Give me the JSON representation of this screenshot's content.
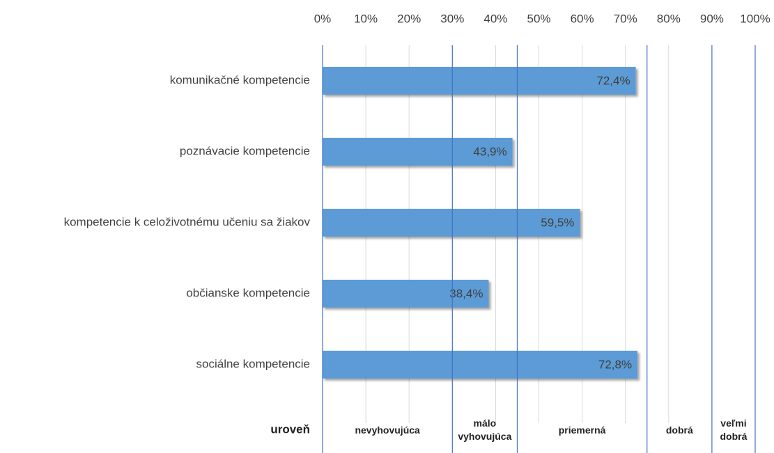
{
  "chart_data": {
    "type": "hbar",
    "categories": [
      "komunikačné kompetencie",
      "poznávacie kompetencie",
      "kompetencie k celoživotnému učeniu sa žiakov",
      "občianske kompetencie",
      "sociálne kompetencie"
    ],
    "values": [
      72.4,
      43.9,
      59.5,
      38.4,
      72.8
    ],
    "value_labels": [
      "72,4%",
      "43,9%",
      "59,5%",
      "38,4%",
      "72,8%"
    ],
    "color": "#5b9bd5",
    "xlim": [
      0,
      100
    ],
    "xticks": [
      {
        "value": 0,
        "label": "0%"
      },
      {
        "value": 10,
        "label": "10%"
      },
      {
        "value": 20,
        "label": "20%"
      },
      {
        "value": 30,
        "label": "30%"
      },
      {
        "value": 40,
        "label": "40%"
      },
      {
        "value": 50,
        "label": "50%"
      },
      {
        "value": 60,
        "label": "60%"
      },
      {
        "value": 70,
        "label": "70%"
      },
      {
        "value": 80,
        "label": "80%"
      },
      {
        "value": 90,
        "label": "90%"
      },
      {
        "value": 100,
        "label": "100%"
      }
    ],
    "grid": true,
    "level_title": "uroveň",
    "levels": [
      {
        "label": "nevyhovujúca",
        "from": 0,
        "to": 30
      },
      {
        "label": "málo vyhovujúca",
        "from": 30,
        "to": 45
      },
      {
        "label": "priemerná",
        "from": 45,
        "to": 75
      },
      {
        "label": "dobrá",
        "from": 75,
        "to": 90
      },
      {
        "label": "veľmi dobrá",
        "from": 90,
        "to": 100
      }
    ],
    "level_color": "#4472c4"
  }
}
